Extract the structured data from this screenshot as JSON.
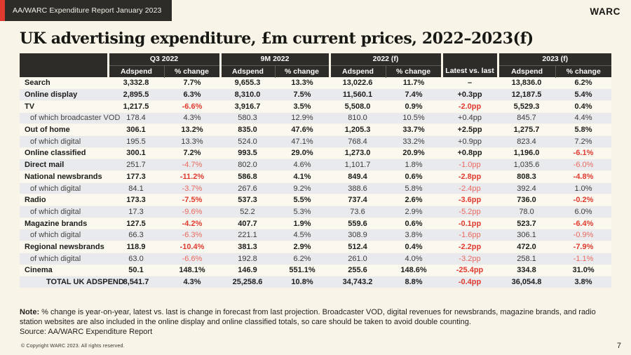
{
  "page": {
    "badge": "AA/WARC Expenditure Report January 2023",
    "logo": "WARC",
    "title": "UK advertising expenditure, £m current prices, 2022–2023(f)",
    "page_number": "7",
    "copyright": "© Copyright WARC 2023. All rights reserved."
  },
  "table": {
    "groups": [
      {
        "label": "Q3 2022",
        "cols": [
          "Adspend",
          "% change"
        ]
      },
      {
        "label": "9M 2022",
        "cols": [
          "Adspend",
          "% change"
        ]
      },
      {
        "label": "2022 (f)",
        "cols": [
          "Adspend",
          "% change"
        ]
      },
      {
        "label": "Latest vs. last",
        "cols": []
      },
      {
        "label": "2023 (f)",
        "cols": [
          "Adspend",
          "% change"
        ]
      }
    ],
    "rows": [
      {
        "label": "Search",
        "type": "main",
        "cells": [
          "3,332.8",
          "7.7%",
          "9,655.3",
          "13.3%",
          "13,022.6",
          "11.7%",
          "–",
          "13,836.0",
          "6.2%"
        ]
      },
      {
        "label": "Online display",
        "type": "main",
        "cells": [
          "2,895.5",
          "6.3%",
          "8,310.0",
          "7.5%",
          "11,560.1",
          "7.4%",
          "+0.3pp",
          "12,187.5",
          "5.4%"
        ]
      },
      {
        "label": "TV",
        "type": "main",
        "cells": [
          "1,217.5",
          "-6.6%",
          "3,916.7",
          "3.5%",
          "5,508.0",
          "0.9%",
          "-2.0pp",
          "5,529.3",
          "0.4%"
        ]
      },
      {
        "label": "of which broadcaster VOD",
        "type": "sub",
        "cells": [
          "178.4",
          "4.3%",
          "580.3",
          "12.9%",
          "810.0",
          "10.5%",
          "+0.4pp",
          "845.7",
          "4.4%"
        ]
      },
      {
        "label": "Out of home",
        "type": "main",
        "cells": [
          "306.1",
          "13.2%",
          "835.0",
          "47.6%",
          "1,205.3",
          "33.7%",
          "+2.5pp",
          "1,275.7",
          "5.8%"
        ]
      },
      {
        "label": "of which digital",
        "type": "sub",
        "cells": [
          "195.5",
          "13.3%",
          "524.0",
          "47.1%",
          "768.4",
          "33.2%",
          "+0.9pp",
          "823.4",
          "7.2%"
        ]
      },
      {
        "label": "Online classified",
        "type": "main",
        "cells": [
          "300.1",
          "7.2%",
          "993.5",
          "29.0%",
          "1,273.0",
          "20.9%",
          "+0.8pp",
          "1,196.0",
          "-6.1%"
        ]
      },
      {
        "label": "Direct mail",
        "type": "main",
        "light_values": true,
        "cells": [
          "251.7",
          "-4.7%",
          "802.0",
          "4.6%",
          "1,101.7",
          "1.8%",
          "-1.0pp",
          "1,035.6",
          "-6.0%"
        ]
      },
      {
        "label": "National newsbrands",
        "type": "main",
        "cells": [
          "177.3",
          "-11.2%",
          "586.8",
          "4.1%",
          "849.4",
          "0.6%",
          "-2.8pp",
          "808.3",
          "-4.8%"
        ]
      },
      {
        "label": "of which digital",
        "type": "sub",
        "cells": [
          "84.1",
          "-3.7%",
          "267.6",
          "9.2%",
          "388.6",
          "5.8%",
          "-2.4pp",
          "392.4",
          "1.0%"
        ]
      },
      {
        "label": "Radio",
        "type": "main",
        "cells": [
          "173.3",
          "-7.5%",
          "537.3",
          "5.5%",
          "737.4",
          "2.6%",
          "-3.6pp",
          "736.0",
          "-0.2%"
        ]
      },
      {
        "label": "of which digital",
        "type": "sub",
        "cells": [
          "17.3",
          "-9.6%",
          "52.2",
          "5.3%",
          "73.6",
          "2.9%",
          "-5.2pp",
          "78.0",
          "6.0%"
        ]
      },
      {
        "label": "Magazine brands",
        "type": "main",
        "cells": [
          "127.5",
          "-4.2%",
          "407.7",
          "1.9%",
          "559.6",
          "0.6%",
          "-0.1pp",
          "523.7",
          "-6.4%"
        ]
      },
      {
        "label": "of which digital",
        "type": "sub",
        "cells": [
          "66.3",
          "-6.3%",
          "221.1",
          "4.5%",
          "308.9",
          "3.8%",
          "-1.6pp",
          "306.1",
          "-0.9%"
        ]
      },
      {
        "label": "Regional newsbrands",
        "type": "main",
        "cells": [
          "118.9",
          "-10.4%",
          "381.3",
          "2.9%",
          "512.4",
          "0.4%",
          "-2.2pp",
          "472.0",
          "-7.9%"
        ]
      },
      {
        "label": "of which digital",
        "type": "sub",
        "cells": [
          "63.0",
          "-6.6%",
          "192.8",
          "6.2%",
          "261.0",
          "4.0%",
          "-3.2pp",
          "258.1",
          "-1.1%"
        ]
      },
      {
        "label": "Cinema",
        "type": "main",
        "cells": [
          "50.1",
          "148.1%",
          "146.9",
          "551.1%",
          "255.6",
          "148.6%",
          "-25.4pp",
          "334.8",
          "31.0%"
        ]
      },
      {
        "label": "TOTAL UK ADSPEND",
        "type": "total",
        "cells": [
          "8,541.7",
          "4.3%",
          "25,258.6",
          "10.8%",
          "34,743.2",
          "8.8%",
          "-0.4pp",
          "36,054.8",
          "3.8%"
        ]
      }
    ]
  },
  "notes": {
    "note_label": "Note:",
    "note_text": "% change is year-on-year, latest vs. last is change in forecast from last projection. Broadcaster VOD, digital revenues for newsbrands, magazine brands, and radio station websites are also included in the online display and online classified totals, so care should be taken to avoid double counting.",
    "source": "Source: AA/WARC Expenditure Report"
  },
  "colors": {
    "background": "#f8f4e8",
    "header_dark": "#2e2c28",
    "negative_red": "#e03a2f",
    "stripe_gray": "#e8eaee",
    "stripe_light": "#fbf8ef",
    "total_row_bg": "#ddd4bf",
    "accent_red": "#e0392e"
  }
}
